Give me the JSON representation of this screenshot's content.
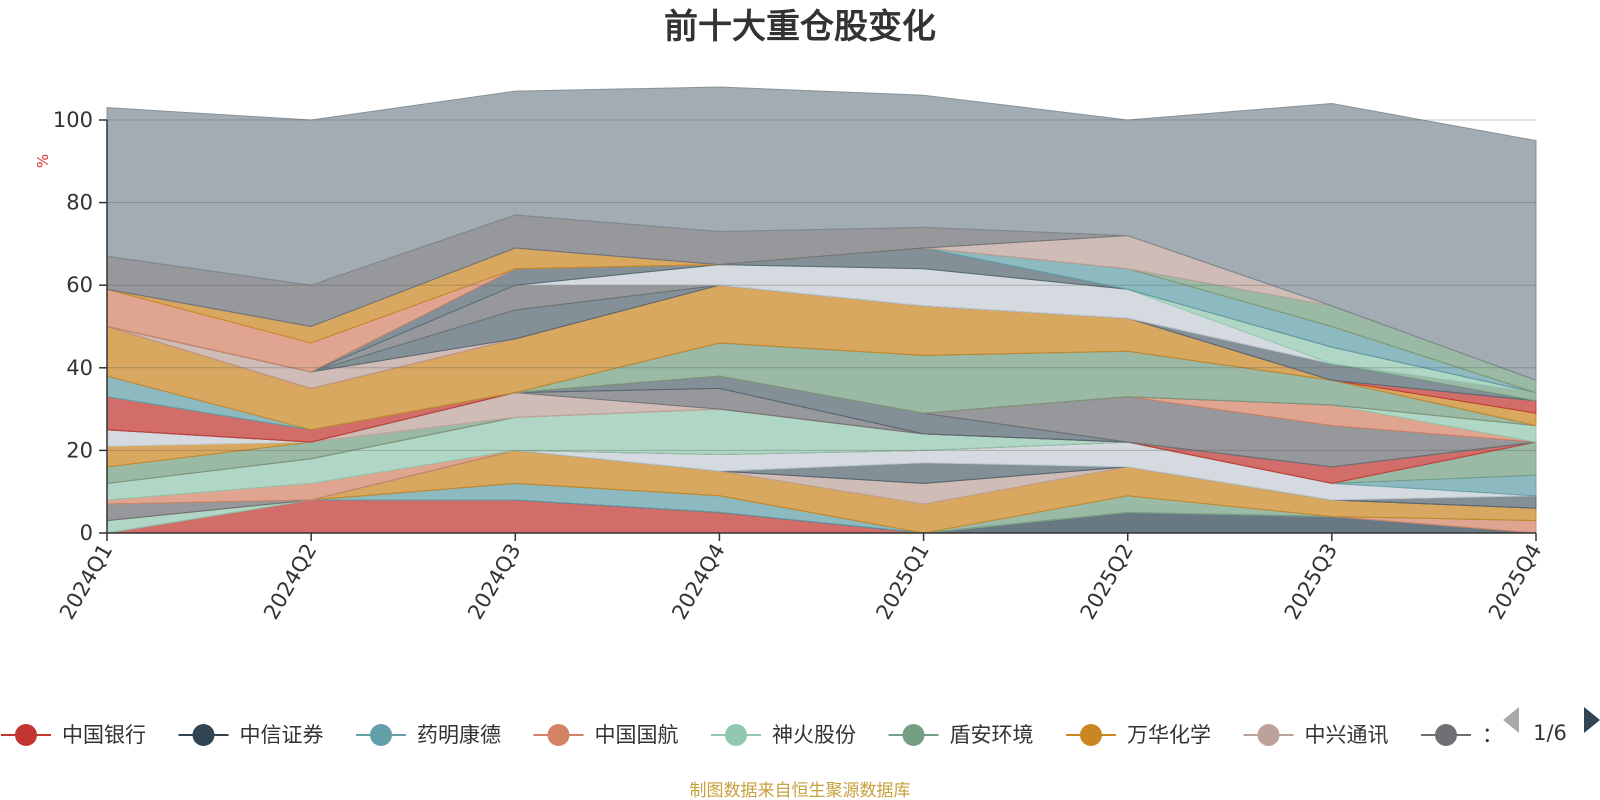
{
  "chart_data": {
    "type": "area",
    "stacked": true,
    "title": "前十大重仓股变化",
    "ylabel": "%",
    "ylim": [
      0,
      100
    ],
    "yticks": [
      "0",
      "20",
      "40",
      "60",
      "80",
      "100"
    ],
    "categories": [
      "2024Q1",
      "2024Q2",
      "2024Q3",
      "2024Q4",
      "2025Q1",
      "2025Q2",
      "2025Q3",
      "2025Q4"
    ],
    "grid": true,
    "legend_position": "bottom",
    "series": [
      {
        "name": "中国银行",
        "color": "#c23531",
        "values": [
          0,
          8,
          8,
          5,
          0,
          0,
          0,
          0
        ]
      },
      {
        "name": "中信证券",
        "color": "#2f4554",
        "values": [
          0,
          0,
          0,
          0,
          0,
          5,
          4,
          0
        ]
      },
      {
        "name": "药明康德",
        "color": "#61a0a8",
        "values": [
          0,
          0,
          4,
          4,
          0,
          0,
          0,
          0
        ]
      },
      {
        "name": "中国国航",
        "color": "#d48265",
        "values": [
          0,
          0,
          0,
          0,
          0,
          0,
          0,
          3
        ]
      },
      {
        "name": "神火股份",
        "color": "#91c7ae",
        "values": [
          3,
          0,
          0,
          0,
          0,
          0,
          0,
          0
        ]
      },
      {
        "name": "盾安环境",
        "color": "#749f83",
        "values": [
          0,
          0,
          0,
          0,
          0,
          4,
          0,
          0
        ]
      },
      {
        "name": "万华化学",
        "color": "#ca8622",
        "values": [
          0,
          0,
          8,
          6,
          7,
          7,
          4,
          3
        ]
      },
      {
        "name": "中兴通讯",
        "color": "#bda29a",
        "values": [
          0,
          0,
          0,
          0,
          5,
          0,
          0,
          0
        ]
      },
      {
        "name": "",
        "color": "#6e7074",
        "values": [
          4,
          0,
          0,
          0,
          0,
          0,
          0,
          0
        ]
      },
      {
        "name": "",
        "color": "#546570",
        "values": [
          0,
          0,
          0,
          0,
          5,
          0,
          0,
          3
        ]
      },
      {
        "name": "",
        "color": "#c4ccd3",
        "values": [
          0,
          0,
          0,
          4,
          3,
          6,
          4,
          0
        ]
      },
      {
        "name": "",
        "color": "#61a0a8",
        "values": [
          0,
          0,
          0,
          0,
          0,
          0,
          0,
          5
        ]
      },
      {
        "name": "",
        "color": "#749f83",
        "values": [
          0,
          0,
          0,
          0,
          0,
          0,
          0,
          8
        ]
      },
      {
        "name": "",
        "color": "#d48265",
        "values": [
          1,
          4,
          0,
          0,
          0,
          0,
          0,
          0
        ]
      },
      {
        "name": "",
        "color": "#91c7ae",
        "values": [
          4,
          6,
          8,
          11,
          4,
          0,
          0,
          0
        ]
      },
      {
        "name": "",
        "color": "#c23531",
        "values": [
          0,
          0,
          0,
          0,
          0,
          0,
          4,
          0
        ]
      },
      {
        "name": "",
        "color": "#749f83",
        "values": [
          4,
          4,
          0,
          0,
          0,
          0,
          0,
          0
        ]
      },
      {
        "name": "",
        "color": "#ca8622",
        "values": [
          5,
          0,
          0,
          0,
          0,
          0,
          0,
          0
        ]
      },
      {
        "name": "",
        "color": "#c4ccd3",
        "values": [
          4,
          0,
          0,
          0,
          0,
          0,
          0,
          0
        ]
      },
      {
        "name": "",
        "color": "#bda29a",
        "values": [
          0,
          0,
          6,
          0,
          0,
          0,
          0,
          0
        ]
      },
      {
        "name": "",
        "color": "#6e7074",
        "values": [
          0,
          0,
          0,
          5,
          0,
          0,
          0,
          0
        ]
      },
      {
        "name": "",
        "color": "#546570",
        "values": [
          0,
          0,
          0,
          3,
          5,
          0,
          0,
          0
        ]
      },
      {
        "name": "",
        "color": "#6e7074",
        "values": [
          0,
          0,
          0,
          0,
          0,
          11,
          10,
          0
        ]
      },
      {
        "name": "",
        "color": "#d48265",
        "values": [
          0,
          0,
          0,
          0,
          0,
          0,
          5,
          0
        ]
      },
      {
        "name": "",
        "color": "#91c7ae",
        "values": [
          0,
          0,
          0,
          0,
          0,
          0,
          0,
          4
        ]
      },
      {
        "name": "",
        "color": "#c23531",
        "values": [
          8,
          3,
          0,
          0,
          0,
          0,
          0,
          0
        ]
      },
      {
        "name": "",
        "color": "#749f83",
        "values": [
          0,
          0,
          0,
          8,
          14,
          11,
          6,
          0
        ]
      },
      {
        "name": "",
        "color": "#61a0a8",
        "values": [
          5,
          0,
          0,
          0,
          0,
          0,
          0,
          0
        ]
      },
      {
        "name": "",
        "color": "#ca8622",
        "values": [
          12,
          10,
          13,
          14,
          12,
          8,
          0,
          3
        ]
      },
      {
        "name": "",
        "color": "#c23531",
        "values": [
          0,
          0,
          0,
          0,
          0,
          0,
          0,
          3
        ]
      },
      {
        "name": "",
        "color": "#bda29a",
        "values": [
          0,
          4,
          0,
          0,
          0,
          0,
          0,
          0
        ]
      },
      {
        "name": "",
        "color": "#546570",
        "values": [
          0,
          0,
          7,
          0,
          0,
          0,
          4,
          0
        ]
      },
      {
        "name": "",
        "color": "#749f83",
        "values": [
          0,
          0,
          0,
          0,
          0,
          0,
          0,
          2
        ]
      },
      {
        "name": "",
        "color": "#6e7074",
        "values": [
          0,
          0,
          6,
          0,
          0,
          0,
          0,
          0
        ]
      },
      {
        "name": "",
        "color": "#c4ccd3",
        "values": [
          0,
          0,
          0,
          5,
          9,
          7,
          0,
          0
        ]
      },
      {
        "name": "",
        "color": "#91c7ae",
        "values": [
          0,
          0,
          0,
          0,
          0,
          0,
          4,
          0
        ]
      },
      {
        "name": "",
        "color": "#546570",
        "values": [
          0,
          0,
          4,
          0,
          5,
          0,
          0,
          0
        ]
      },
      {
        "name": "",
        "color": "#61a0a8",
        "values": [
          0,
          0,
          0,
          0,
          0,
          5,
          5,
          0
        ]
      },
      {
        "name": "",
        "color": "#d48265",
        "values": [
          9,
          7,
          0,
          0,
          0,
          0,
          0,
          0
        ]
      },
      {
        "name": "",
        "color": "#ca8622",
        "values": [
          0,
          4,
          5,
          0,
          0,
          0,
          0,
          0
        ]
      },
      {
        "name": "",
        "color": "#749f83",
        "values": [
          0,
          0,
          0,
          0,
          0,
          0,
          5,
          3
        ]
      },
      {
        "name": "",
        "color": "#bda29a",
        "values": [
          0,
          0,
          0,
          0,
          0,
          8,
          0,
          0
        ]
      },
      {
        "name": "",
        "color": "#6e7074",
        "values": [
          8,
          10,
          8,
          8,
          5,
          0,
          0,
          0
        ]
      },
      {
        "name": "",
        "color": "#7f8c94",
        "values": [
          36,
          40,
          30,
          35,
          32,
          28,
          49,
          58
        ]
      }
    ]
  },
  "legend": {
    "items": [
      {
        "label": "中国银行",
        "color": "#c23531"
      },
      {
        "label": "中信证券",
        "color": "#2f4554"
      },
      {
        "label": "药明康德",
        "color": "#61a0a8"
      },
      {
        "label": "中国国航",
        "color": "#d48265"
      },
      {
        "label": "神火股份",
        "color": "#91c7ae"
      },
      {
        "label": "盾安环境",
        "color": "#749f83"
      },
      {
        "label": "万华化学",
        "color": "#ca8622"
      },
      {
        "label": "中兴通讯",
        "color": "#bda29a"
      },
      {
        "label": "：",
        "color": "#6e7074"
      }
    ],
    "page_label": "1/6",
    "prev_icon": "triangle-left-icon",
    "next_icon": "triangle-right-icon"
  },
  "footer": {
    "source": "制图数据来自恒生聚源数据库"
  }
}
